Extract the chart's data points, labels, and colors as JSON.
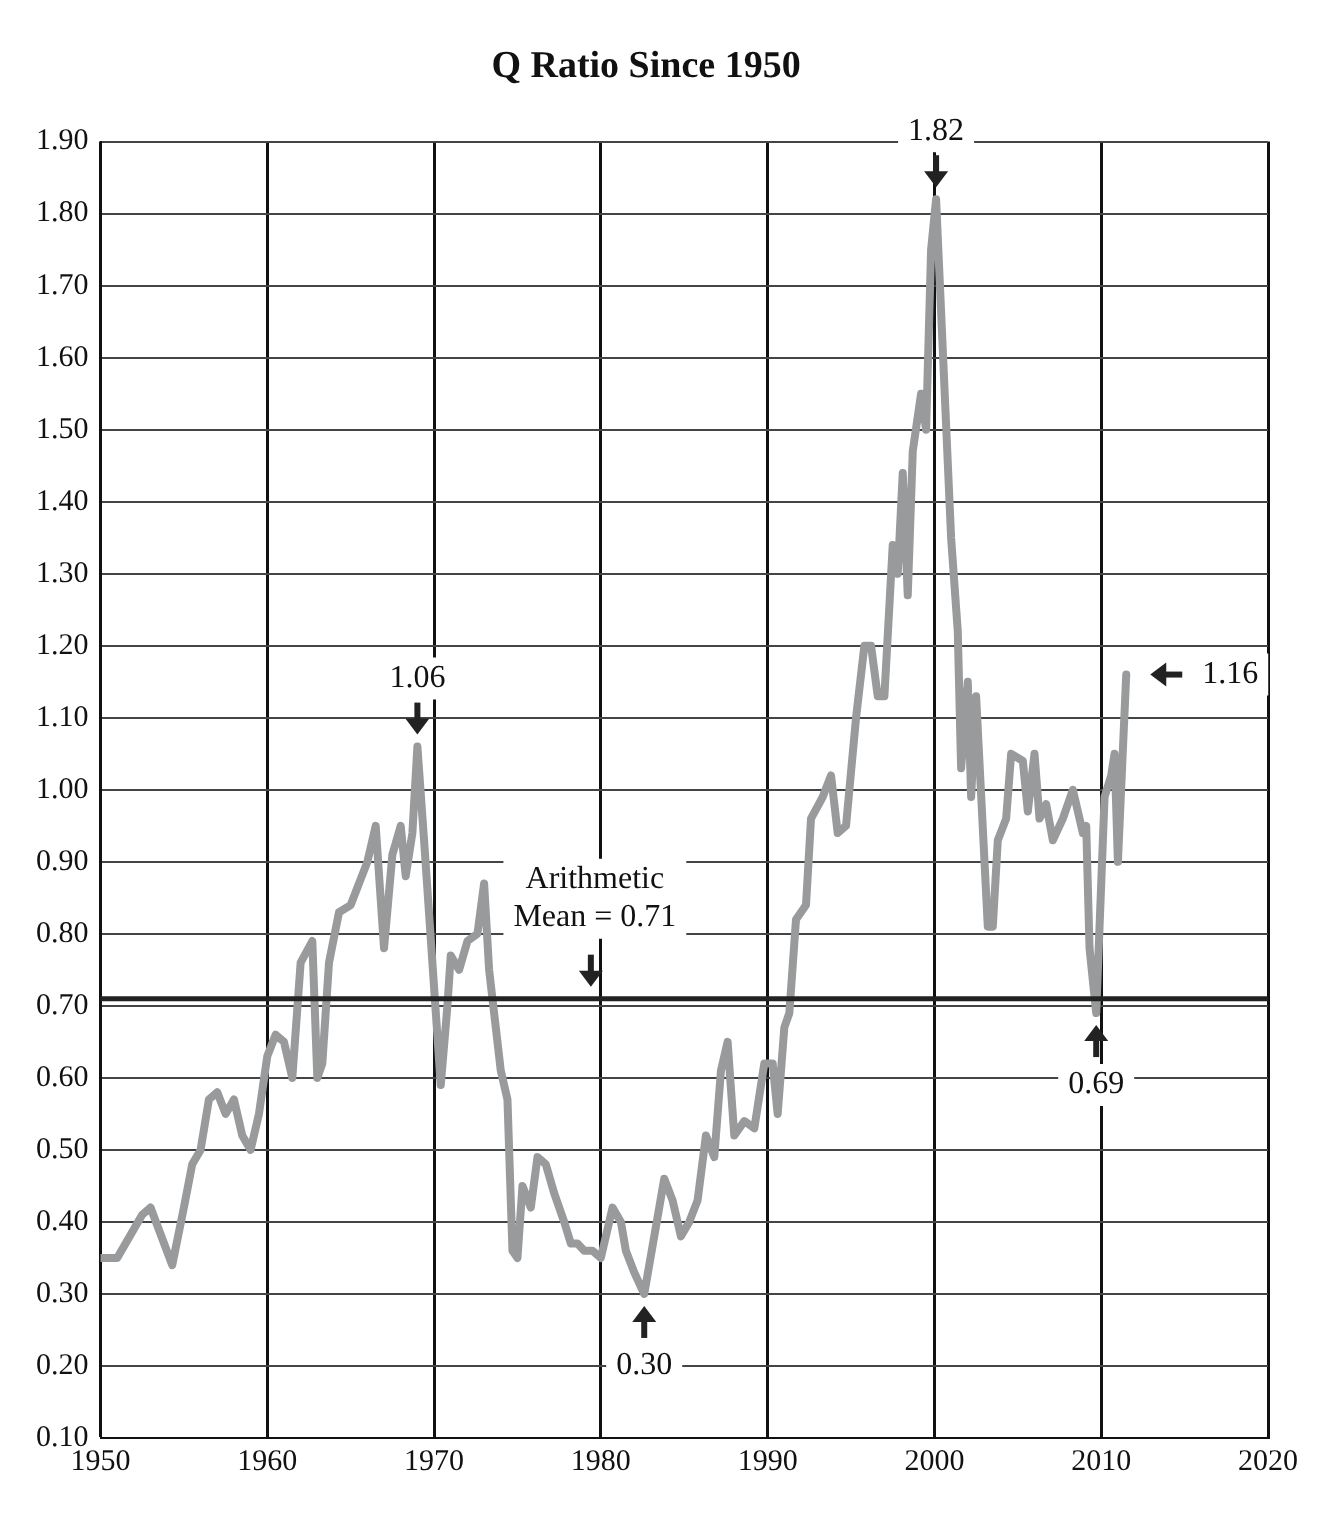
{
  "chart_data": {
    "type": "line",
    "title": "Q Ratio Since 1950",
    "x": [
      1950,
      1951,
      1952.5,
      1953,
      1954.3,
      1955,
      1955.5,
      1956,
      1956.5,
      1957,
      1957.5,
      1958,
      1958.5,
      1959,
      1959.5,
      1960,
      1960.5,
      1961,
      1961.5,
      1962,
      1962.7,
      1963,
      1963.3,
      1963.7,
      1964.3,
      1965,
      1966,
      1966.5,
      1967,
      1967.5,
      1968,
      1968.3,
      1968.7,
      1969,
      1969.4,
      1970.4,
      1970.8,
      1971,
      1971.5,
      1972,
      1972.6,
      1973,
      1973.3,
      1974,
      1974.4,
      1974.7,
      1975,
      1975.3,
      1975.8,
      1976.2,
      1976.7,
      1977.2,
      1977.8,
      1978.2,
      1978.6,
      1979,
      1979.5,
      1980,
      1980.7,
      1981.2,
      1981.5,
      1982,
      1982.6,
      1983.2,
      1983.8,
      1984.3,
      1984.8,
      1985.3,
      1985.8,
      1986.3,
      1986.8,
      1987.2,
      1987.6,
      1988,
      1988.6,
      1989.2,
      1989.8,
      1990.3,
      1990.6,
      1991,
      1991.3,
      1991.7,
      1992.3,
      1992.6,
      1993.3,
      1993.8,
      1994.2,
      1994.7,
      1995.3,
      1995.8,
      1996.2,
      1996.6,
      1997,
      1997.5,
      1997.8,
      1998.1,
      1998.4,
      1998.7,
      1999.2,
      1999.5,
      1999.8,
      2000.1,
      2001,
      2001.4,
      2001.6,
      2002,
      2002.2,
      2002.5,
      2003.2,
      2003.5,
      2003.8,
      2004.3,
      2004.6,
      2005.3,
      2005.6,
      2006,
      2006.3,
      2006.7,
      2007.1,
      2007.7,
      2008.3,
      2008.9,
      2009.1,
      2009.3,
      2009.7,
      2010.2,
      2010.6,
      2010.8,
      2011,
      2011.5
    ],
    "series": [
      {
        "color": "#999a9c",
        "values": [
          0.35,
          0.35,
          0.41,
          0.42,
          0.34,
          0.42,
          0.48,
          0.5,
          0.57,
          0.58,
          0.55,
          0.57,
          0.52,
          0.5,
          0.55,
          0.63,
          0.66,
          0.65,
          0.6,
          0.76,
          0.79,
          0.6,
          0.62,
          0.76,
          0.83,
          0.84,
          0.9,
          0.95,
          0.78,
          0.91,
          0.95,
          0.88,
          0.94,
          1.06,
          0.93,
          0.59,
          0.7,
          0.77,
          0.75,
          0.79,
          0.8,
          0.87,
          0.75,
          0.61,
          0.57,
          0.36,
          0.35,
          0.45,
          0.42,
          0.49,
          0.48,
          0.44,
          0.4,
          0.37,
          0.37,
          0.36,
          0.36,
          0.35,
          0.42,
          0.4,
          0.36,
          0.33,
          0.3,
          0.38,
          0.46,
          0.43,
          0.38,
          0.4,
          0.43,
          0.52,
          0.49,
          0.61,
          0.65,
          0.52,
          0.54,
          0.53,
          0.62,
          0.62,
          0.55,
          0.67,
          0.69,
          0.82,
          0.84,
          0.96,
          0.99,
          1.02,
          0.94,
          0.95,
          1.1,
          1.2,
          1.2,
          1.13,
          1.13,
          1.34,
          1.3,
          1.44,
          1.27,
          1.47,
          1.55,
          1.5,
          1.75,
          1.82,
          1.35,
          1.22,
          1.03,
          1.15,
          0.99,
          1.13,
          0.81,
          0.81,
          0.93,
          0.96,
          1.05,
          1.04,
          0.97,
          1.05,
          0.96,
          0.98,
          0.93,
          0.96,
          1.0,
          0.94,
          0.95,
          0.78,
          0.69,
          0.99,
          1.02,
          1.05,
          0.9,
          1.16
        ]
      }
    ],
    "xlim": [
      1950,
      2020
    ],
    "xticks": [
      1950,
      1960,
      1970,
      1980,
      1990,
      2000,
      2010,
      2020
    ],
    "ylim": [
      0.1,
      1.9
    ],
    "yticks": [
      {
        "value": 0.1,
        "label": "0.10"
      },
      {
        "value": 0.2,
        "label": "0.20"
      },
      {
        "value": 0.3,
        "label": "0.30"
      },
      {
        "value": 0.4,
        "label": "0.40"
      },
      {
        "value": 0.5,
        "label": "0.50"
      },
      {
        "value": 0.6,
        "label": "0.60"
      },
      {
        "value": 0.7,
        "label": "0.70"
      },
      {
        "value": 0.8,
        "label": "0.80"
      },
      {
        "value": 0.9,
        "label": "0.90"
      },
      {
        "value": 1.0,
        "label": "1.00"
      },
      {
        "value": 1.1,
        "label": "1.10"
      },
      {
        "value": 1.2,
        "label": "1.20"
      },
      {
        "value": 1.3,
        "label": "1.30"
      },
      {
        "value": 1.4,
        "label": "1.40"
      },
      {
        "value": 1.5,
        "label": "1.50"
      },
      {
        "value": 1.6,
        "label": "1.60"
      },
      {
        "value": 1.7,
        "label": "1.70"
      },
      {
        "value": 1.8,
        "label": "1.80"
      },
      {
        "value": 1.9,
        "label": "1.90"
      }
    ],
    "grid": true,
    "legend": false,
    "marker": "none",
    "line_style": "solid",
    "ref_lines": [
      {
        "axis": "y",
        "value": 0.71,
        "label": "Arithmetic\nMean = 0.71",
        "color": "#222222"
      }
    ],
    "annotations": [
      {
        "text": "1.06",
        "x": 1969,
        "y": 1.06
      },
      {
        "text": "1.82",
        "x": 2000.1,
        "y": 1.82
      },
      {
        "text": "0.30",
        "x": 1982.6,
        "y": 0.3
      },
      {
        "text": "0.69",
        "x": 2009.7,
        "y": 0.69
      },
      {
        "text": "1.16",
        "x": 2011.5,
        "y": 1.16
      }
    ]
  }
}
